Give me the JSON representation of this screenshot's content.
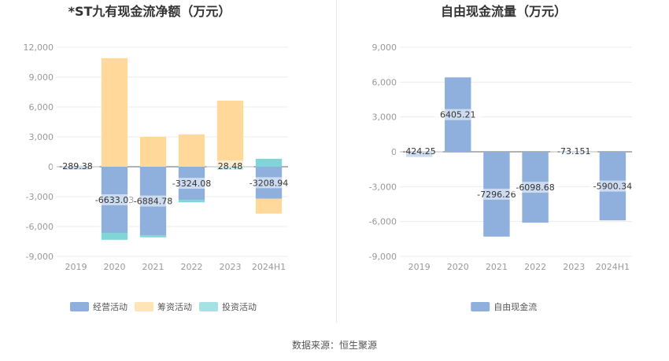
{
  "source_text": "数据来源：恒生聚源",
  "chart_data": [
    {
      "type": "bar",
      "stacked": true,
      "title": "*ST九有现金流净额（万元）",
      "categories": [
        "2019",
        "2020",
        "2021",
        "2022",
        "2023",
        "2024H1"
      ],
      "ylim": [
        -9000,
        12000
      ],
      "yticks": [
        -9000,
        -6000,
        -3000,
        0,
        3000,
        6000,
        9000,
        12000
      ],
      "ytick_labels": [
        "-9,000",
        "-6,000",
        "-3,000",
        "0",
        "3,000",
        "6,000",
        "9,000",
        "12,000"
      ],
      "grid": true,
      "legend_position": "bottom",
      "series": [
        {
          "name": "经营活动",
          "color": "#8fb0dd",
          "values": [
            -289.38,
            -6633.03,
            -6884.78,
            -3324.08,
            28.48,
            -3208.94
          ]
        },
        {
          "name": "筹资活动",
          "color": "#ffd89a",
          "values": [
            0,
            10900,
            3000,
            3250,
            6600,
            -1500
          ]
        },
        {
          "name": "投资活动",
          "color": "#7fd5d8",
          "values": [
            0,
            -700,
            -200,
            -250,
            -300,
            800
          ]
        }
      ],
      "data_labels": [
        "-289.38",
        "-6633.03",
        "-6884.78",
        "-3324.08",
        "28.48",
        "-3208.94"
      ]
    },
    {
      "type": "bar",
      "title": "自由现金流量（万元）",
      "categories": [
        "2019",
        "2020",
        "2021",
        "2022",
        "2023",
        "2024H1"
      ],
      "ylim": [
        -9000,
        9000
      ],
      "yticks": [
        -9000,
        -6000,
        -3000,
        0,
        3000,
        6000,
        9000
      ],
      "ytick_labels": [
        "-9,000",
        "-6,000",
        "-3,000",
        "0",
        "3,000",
        "6,000",
        "9,000"
      ],
      "grid": true,
      "legend_position": "bottom",
      "series": [
        {
          "name": "自由现金流",
          "color": "#8fb0dd",
          "values": [
            -424.25,
            6405.21,
            -7296.26,
            -6098.68,
            -73.151,
            -5900.34
          ]
        }
      ],
      "data_labels": [
        "-424.25",
        "6405.21",
        "-7296.26",
        "-6098.68",
        "-73.151",
        "-5900.34"
      ]
    }
  ]
}
